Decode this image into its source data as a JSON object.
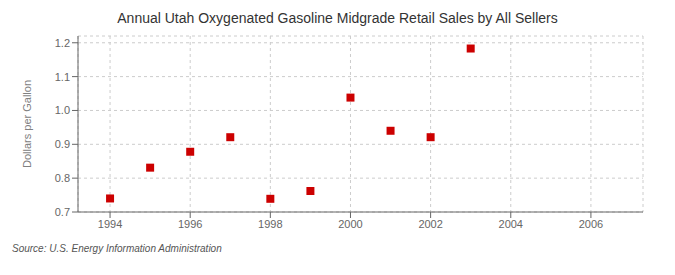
{
  "chart_data": {
    "type": "scatter",
    "title": "Annual Utah Oxygenated Gasoline Midgrade Retail Sales by All Sellers",
    "y_label": "Dollars per Gallon",
    "annotation": "Source: U.S. Energy Information Administration",
    "x": [
      1994,
      1995,
      1996,
      1997,
      1998,
      1999,
      2000,
      2001,
      2002,
      2003
    ],
    "values": [
      0.74,
      0.831,
      0.878,
      0.921,
      0.739,
      0.762,
      1.038,
      0.94,
      0.921,
      1.183
    ],
    "color": "#cc0000",
    "marker": "square",
    "xlim": [
      1993.2,
      2007.3
    ],
    "ylim": [
      0.7,
      1.22
    ],
    "xticks": [
      1994,
      1996,
      1998,
      2000,
      2002,
      2004,
      2006
    ],
    "yticks": [
      0.7,
      0.8,
      0.9,
      {
        "value": 1,
        "label": "1.0"
      },
      1.1,
      1.2
    ],
    "grid": true
  }
}
